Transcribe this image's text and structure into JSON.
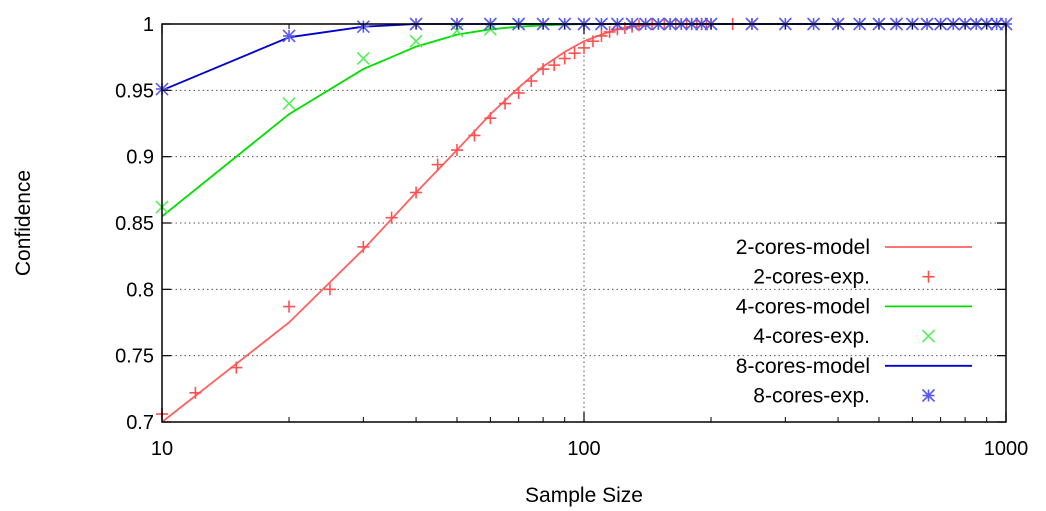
{
  "chart_data": {
    "type": "line",
    "title": "",
    "xlabel": "Sample Size",
    "ylabel": "Confidence",
    "xscale": "log",
    "xlim": [
      10,
      1000
    ],
    "ylim": [
      0.7,
      1.0
    ],
    "xticks": [
      10,
      100,
      1000
    ],
    "xtick_labels": [
      "10",
      "100",
      "1000"
    ],
    "yticks": [
      0.7,
      0.75,
      0.8,
      0.85,
      0.9,
      0.95,
      1.0
    ],
    "ytick_labels": [
      "0.7",
      "0.75",
      "0.8",
      "0.85",
      "0.9",
      "0.95",
      "1"
    ],
    "grid": true,
    "legend_position": "right",
    "series": [
      {
        "name": "2-cores-model",
        "kind": "line",
        "color": "#ff6060",
        "x": [
          10,
          20,
          30,
          40,
          50,
          60,
          70,
          80,
          90,
          100,
          110,
          120,
          130,
          140,
          150,
          200,
          300,
          500,
          1000
        ],
        "y": [
          0.7,
          0.775,
          0.83,
          0.873,
          0.905,
          0.932,
          0.952,
          0.968,
          0.979,
          0.987,
          0.992,
          0.996,
          0.998,
          0.999,
          1.0,
          1.0,
          1.0,
          1.0,
          1.0
        ]
      },
      {
        "name": "2-cores-exp.",
        "kind": "points",
        "marker": "plus",
        "color": "#ff5050",
        "x": [
          10,
          12,
          15,
          20,
          25,
          30,
          35,
          40,
          45,
          50,
          55,
          60,
          65,
          70,
          75,
          80,
          85,
          90,
          95,
          100,
          105,
          110,
          115,
          120,
          125,
          130,
          135,
          140,
          145,
          150,
          155,
          160,
          165,
          170,
          175,
          180,
          185,
          190,
          195,
          200,
          225,
          250
        ],
        "y": [
          0.706,
          0.722,
          0.741,
          0.787,
          0.8,
          0.832,
          0.854,
          0.873,
          0.894,
          0.905,
          0.916,
          0.929,
          0.94,
          0.948,
          0.957,
          0.966,
          0.969,
          0.974,
          0.978,
          0.982,
          0.987,
          0.991,
          0.994,
          0.996,
          0.997,
          0.998,
          0.999,
          1.0,
          1.0,
          1.0,
          1.0,
          1.0,
          1.0,
          1.0,
          1.0,
          1.0,
          1.0,
          1.0,
          1.0,
          1.0,
          1.0,
          1.0
        ]
      },
      {
        "name": "4-cores-model",
        "kind": "line",
        "color": "#00dd00",
        "x": [
          10,
          20,
          30,
          40,
          50,
          60,
          70,
          80,
          100,
          200,
          1000
        ],
        "y": [
          0.855,
          0.932,
          0.966,
          0.983,
          0.992,
          0.996,
          0.998,
          0.999,
          1.0,
          1.0,
          1.0
        ]
      },
      {
        "name": "4-cores-exp.",
        "kind": "points",
        "marker": "cross",
        "color": "#55ee55",
        "x": [
          10,
          20,
          30,
          40,
          50,
          60,
          70
        ],
        "y": [
          0.862,
          0.94,
          0.974,
          0.987,
          0.995,
          0.996,
          1.0
        ]
      },
      {
        "name": "8-cores-model",
        "kind": "line",
        "color": "#0000cc",
        "x": [
          10,
          20,
          30,
          40,
          50,
          100,
          1000
        ],
        "y": [
          0.95,
          0.99,
          0.998,
          1.0,
          1.0,
          1.0,
          1.0
        ]
      },
      {
        "name": "8-cores-exp.",
        "kind": "points",
        "marker": "star",
        "color": "#5a5aee",
        "x": [
          10,
          20,
          30,
          40,
          50,
          60,
          70,
          80,
          90,
          100,
          110,
          120,
          130,
          140,
          150,
          160,
          170,
          180,
          190,
          200,
          250,
          300,
          350,
          400,
          450,
          500,
          550,
          600,
          650,
          700,
          750,
          800,
          850,
          900,
          950,
          1000
        ],
        "y": [
          0.951,
          0.991,
          0.998,
          1.0,
          1.0,
          1.0,
          1.0,
          1.0,
          1.0,
          1.0,
          1.0,
          1.0,
          1.0,
          1.0,
          1.0,
          1.0,
          1.0,
          1.0,
          1.0,
          1.0,
          1.0,
          1.0,
          1.0,
          1.0,
          1.0,
          1.0,
          1.0,
          1.0,
          1.0,
          1.0,
          1.0,
          1.0,
          1.0,
          1.0,
          1.0,
          1.0
        ]
      }
    ]
  }
}
